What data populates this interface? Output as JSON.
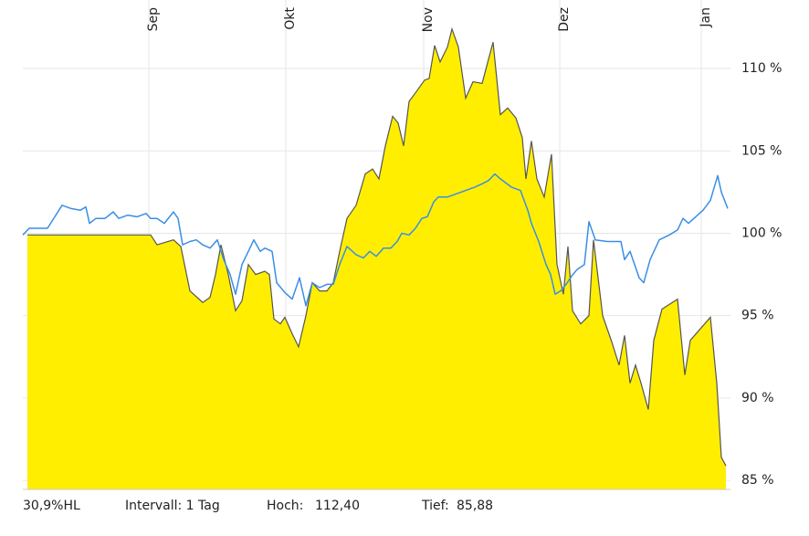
{
  "chart_data": {
    "type": "line",
    "xlim": [
      0,
      155
    ],
    "xticks": [
      {
        "value": 27.6,
        "label": "Sep"
      },
      {
        "value": 57.6,
        "label": "Okt"
      },
      {
        "value": 87.8,
        "label": "Nov"
      },
      {
        "value": 117.6,
        "label": "Dez"
      },
      {
        "value": 148.6,
        "label": "Jan"
      }
    ],
    "ylim": [
      84.45,
      114.16
    ],
    "yticks": [
      {
        "value": 85,
        "label": "85 %"
      },
      {
        "value": 90,
        "label": "90 %"
      },
      {
        "value": 95,
        "label": "95 %"
      },
      {
        "value": 100,
        "label": "100 %"
      },
      {
        "value": 105,
        "label": "105 %"
      },
      {
        "value": 110,
        "label": "110 %"
      }
    ],
    "grid": true,
    "series": [
      {
        "color": "#ffee00",
        "area": true,
        "x": [
          1,
          28,
          29.4,
          33,
          34.6,
          36.6,
          39.4,
          41,
          42.2,
          43.4,
          45,
          46.6,
          48,
          49.4,
          51,
          53,
          54,
          55,
          56.4,
          57.4,
          59,
          60.4,
          62,
          63.4,
          65,
          66.6,
          68,
          69.4,
          71,
          73,
          75,
          76.6,
          78,
          79.4,
          81,
          82.2,
          83.4,
          84.6,
          86.2,
          88,
          89,
          90.2,
          91.4,
          93,
          94,
          95.4,
          97,
          98.6,
          100.6,
          103,
          104.6,
          106.2,
          108,
          109.4,
          110.2,
          111.4,
          112.6,
          114.2,
          115.8,
          117,
          118.4,
          119.4,
          120.4,
          122.2,
          124,
          125,
          127,
          129,
          130.6,
          131.8,
          133,
          134.2,
          135.4,
          137,
          138.2,
          140,
          143.4,
          145,
          146.2,
          150.6,
          152,
          153,
          154
        ],
        "values": [
          99.9,
          99.9,
          99.3,
          99.6,
          99.2,
          96.5,
          95.8,
          96.1,
          97.5,
          99.3,
          97.5,
          95.3,
          95.9,
          98.1,
          97.5,
          97.7,
          97.5,
          94.8,
          94.5,
          94.9,
          93.9,
          93.1,
          95.0,
          97.0,
          96.5,
          96.5,
          97.0,
          98.9,
          100.9,
          101.7,
          103.6,
          103.9,
          103.3,
          105.3,
          107.1,
          106.7,
          105.3,
          108.0,
          108.6,
          109.3,
          109.4,
          111.4,
          110.4,
          111.3,
          112.4,
          111.3,
          108.2,
          109.2,
          109.1,
          111.6,
          107.2,
          107.6,
          107.0,
          105.8,
          103.3,
          105.6,
          103.3,
          102.2,
          104.8,
          98.1,
          96.3,
          99.2,
          95.3,
          94.5,
          95.0,
          99.6,
          95.0,
          93.4,
          92.0,
          93.8,
          90.9,
          92.0,
          90.9,
          89.3,
          93.5,
          95.4,
          96.0,
          91.4,
          93.5,
          94.9,
          90.9,
          86.4,
          85.88
        ]
      },
      {
        "color": "#3a8ee6",
        "area": false,
        "x": [
          0,
          1.4,
          4,
          5.4,
          7,
          8.6,
          10.6,
          12.6,
          13.8,
          14.6,
          16,
          18,
          19.8,
          21,
          23,
          25,
          27,
          28,
          29.4,
          31,
          33,
          34,
          35,
          36.6,
          38,
          39.4,
          41,
          42.6,
          44,
          45.4,
          46.6,
          48,
          49.4,
          50.6,
          52,
          53,
          54.6,
          55.6,
          57.4,
          59,
          60.6,
          62,
          63.4,
          65,
          66.6,
          68,
          69.4,
          71,
          73,
          74.6,
          76,
          77.4,
          79,
          80.6,
          82,
          83,
          84.6,
          86,
          87.4,
          88.6,
          90,
          91,
          93,
          95,
          97,
          99,
          100.6,
          102,
          103.4,
          104.6,
          107,
          109,
          110.6,
          111.4,
          113,
          114.6,
          115.6,
          116.6,
          117.8,
          119,
          120.2,
          121.4,
          123,
          124,
          125.4,
          128,
          131,
          131.8,
          133,
          135,
          136,
          137.4,
          139.4,
          141.6,
          143.4,
          144.6,
          145.8,
          147,
          149,
          150.6,
          152.2,
          153,
          154.4
        ],
        "values": [
          99.9,
          100.3,
          100.3,
          100.3,
          101.0,
          101.7,
          101.5,
          101.4,
          101.6,
          100.6,
          100.9,
          100.9,
          101.3,
          100.9,
          101.1,
          101.0,
          101.2,
          100.9,
          100.9,
          100.6,
          101.3,
          100.9,
          99.3,
          99.5,
          99.6,
          99.3,
          99.1,
          99.6,
          98.4,
          97.5,
          96.3,
          98.1,
          98.9,
          99.6,
          98.9,
          99.1,
          98.9,
          97.0,
          96.4,
          96.0,
          97.3,
          95.6,
          97.0,
          96.7,
          96.9,
          96.9,
          98.1,
          99.2,
          98.7,
          98.5,
          98.9,
          98.6,
          99.1,
          99.1,
          99.5,
          100.0,
          99.9,
          100.3,
          100.9,
          101.0,
          101.9,
          102.2,
          102.2,
          102.4,
          102.6,
          102.8,
          103.0,
          103.2,
          103.6,
          103.3,
          102.8,
          102.6,
          101.4,
          100.6,
          99.5,
          98.1,
          97.5,
          96.3,
          96.5,
          96.9,
          97.4,
          97.8,
          98.1,
          100.7,
          99.6,
          99.5,
          99.5,
          98.4,
          98.9,
          97.3,
          97.0,
          98.4,
          99.6,
          99.9,
          100.2,
          100.9,
          100.6,
          100.9,
          101.4,
          102.0,
          103.5,
          102.5,
          101.5
        ]
      }
    ]
  },
  "footer": {
    "name": "30,9%HL",
    "interval": "Intervall: 1 Tag",
    "high_label": "Hoch:",
    "high": "112,40",
    "low_label": "Tief:",
    "low": "85,88"
  }
}
